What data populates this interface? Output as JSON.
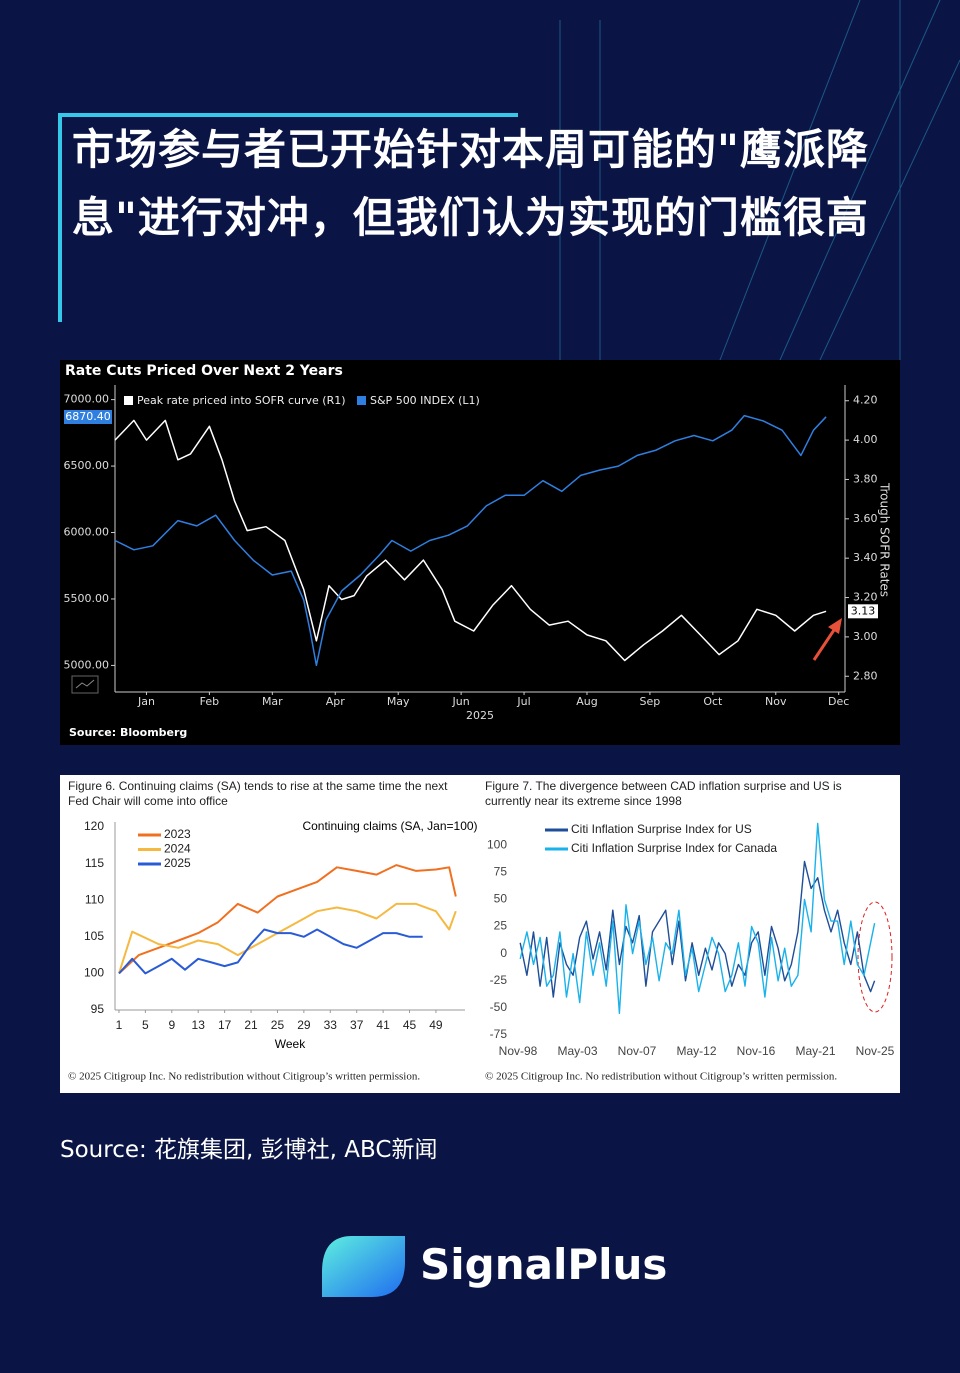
{
  "header": {
    "title": "市场参与者已开始针对本周可能的\"鹰派降息\"进行对冲，但我们认为实现的门槛很高"
  },
  "chart_data": [
    {
      "type": "line",
      "title": "Rate Cuts Priced Over Next 2 Years",
      "source": "Source: Bloomberg",
      "xlabel": "2025",
      "y2label": "Trough SOFR Rates",
      "xlim": [
        0,
        11.6
      ],
      "xticks": [
        {
          "value": 0.5,
          "label": "Jan"
        },
        {
          "value": 1.5,
          "label": "Feb"
        },
        {
          "value": 2.5,
          "label": "Mar"
        },
        {
          "value": 3.5,
          "label": "Apr"
        },
        {
          "value": 4.5,
          "label": "May"
        },
        {
          "value": 5.5,
          "label": "Jun"
        },
        {
          "value": 6.5,
          "label": "Jul"
        },
        {
          "value": 7.5,
          "label": "Aug"
        },
        {
          "value": 8.5,
          "label": "Sep"
        },
        {
          "value": 9.5,
          "label": "Oct"
        },
        {
          "value": 10.5,
          "label": "Nov"
        },
        {
          "value": 11.5,
          "label": "Dec"
        }
      ],
      "ylim": [
        4800,
        7110
      ],
      "yticks": [
        {
          "value": 5000,
          "label": "5000.00"
        },
        {
          "value": 5500,
          "label": "5500.00"
        },
        {
          "value": 6000,
          "label": "6000.00"
        },
        {
          "value": 6500,
          "label": "6500.00"
        },
        {
          "value": 7000,
          "label": "7000.00"
        }
      ],
      "y2lim": [
        2.72,
        4.28
      ],
      "y2ticks": [
        {
          "value": 2.8,
          "label": "2.80"
        },
        {
          "value": 3.0,
          "label": "3.00"
        },
        {
          "value": 3.2,
          "label": "3.20"
        },
        {
          "value": 3.4,
          "label": "3.40"
        },
        {
          "value": 3.6,
          "label": "3.60"
        },
        {
          "value": 3.8,
          "label": "3.80"
        },
        {
          "value": 4.0,
          "label": "4.00"
        },
        {
          "value": 4.2,
          "label": "4.20"
        }
      ],
      "series": [
        {
          "name": "Peak rate priced into SOFR curve (R1)",
          "color": "#ffffff",
          "axis": "y2",
          "last_label": "3.13",
          "x": [
            0,
            0.3,
            0.5,
            0.8,
            1.0,
            1.2,
            1.5,
            1.7,
            1.9,
            2.1,
            2.4,
            2.7,
            3.0,
            3.2,
            3.4,
            3.6,
            3.8,
            4.0,
            4.3,
            4.6,
            4.9,
            5.2,
            5.4,
            5.7,
            6.0,
            6.3,
            6.6,
            6.9,
            7.2,
            7.5,
            7.8,
            8.1,
            8.4,
            8.7,
            9.0,
            9.3,
            9.6,
            9.9,
            10.2,
            10.5,
            10.8,
            11.1,
            11.3
          ],
          "values": [
            4.0,
            4.1,
            4.0,
            4.1,
            3.9,
            3.93,
            4.07,
            3.9,
            3.69,
            3.54,
            3.56,
            3.49,
            3.24,
            2.98,
            3.26,
            3.19,
            3.21,
            3.31,
            3.39,
            3.29,
            3.39,
            3.24,
            3.08,
            3.03,
            3.16,
            3.26,
            3.14,
            3.06,
            3.08,
            3.01,
            2.98,
            2.88,
            2.96,
            3.03,
            3.11,
            3.01,
            2.91,
            2.98,
            3.14,
            3.11,
            3.03,
            3.11,
            3.13
          ]
        },
        {
          "name": "S&P 500 INDEX  (L1)",
          "color": "#2f7fe0",
          "last_label": "6870.40",
          "x": [
            0,
            0.3,
            0.6,
            1.0,
            1.3,
            1.6,
            1.9,
            2.2,
            2.5,
            2.8,
            3.0,
            3.1,
            3.2,
            3.35,
            3.6,
            3.9,
            4.2,
            4.4,
            4.7,
            5.0,
            5.3,
            5.6,
            5.9,
            6.2,
            6.5,
            6.8,
            7.1,
            7.4,
            7.7,
            8.0,
            8.3,
            8.6,
            8.9,
            9.2,
            9.5,
            9.8,
            10.0,
            10.3,
            10.6,
            10.9,
            11.1,
            11.3
          ],
          "values": [
            5940,
            5870,
            5900,
            6090,
            6050,
            6130,
            5940,
            5790,
            5680,
            5710,
            5490,
            5260,
            5000,
            5340,
            5560,
            5680,
            5830,
            5940,
            5860,
            5940,
            5980,
            6050,
            6200,
            6280,
            6280,
            6390,
            6310,
            6430,
            6470,
            6500,
            6580,
            6620,
            6690,
            6730,
            6690,
            6770,
            6880,
            6840,
            6770,
            6580,
            6770,
            6870.4
          ]
        }
      ]
    },
    {
      "type": "line",
      "title": "Figure 6. Continuing claims (SA) tends to rise at the same time the next Fed Chair will come into office",
      "subtitle": "Continuing claims (SA, Jan=100)",
      "xlabel": "Week",
      "footnote": "© 2025 Citigroup Inc. No redistribution without Citigroup’s written permission.",
      "xlim": [
        0.4,
        53.4
      ],
      "xticks": [
        1,
        5,
        9,
        13,
        17,
        21,
        25,
        29,
        33,
        37,
        41,
        45,
        49
      ],
      "ylim": [
        95,
        120
      ],
      "yticks": [
        95,
        100,
        105,
        110,
        115,
        120
      ],
      "series": [
        {
          "name": "2023",
          "color": "#f07020",
          "x": [
            1,
            4,
            7,
            10,
            13,
            16,
            19,
            22,
            25,
            28,
            31,
            34,
            37,
            40,
            43,
            46,
            49,
            51,
            52
          ],
          "values": [
            100,
            102.5,
            103.5,
            104.5,
            105.5,
            107,
            109.5,
            108.3,
            110.5,
            111.5,
            112.5,
            114.5,
            114,
            113.5,
            114.8,
            114,
            114.2,
            114.5,
            110.5
          ]
        },
        {
          "name": "2024",
          "color": "#f5b942",
          "x": [
            1,
            3,
            7,
            10,
            13,
            16,
            19,
            22,
            25,
            28,
            31,
            34,
            37,
            40,
            43,
            46,
            49,
            51,
            52
          ],
          "values": [
            100,
            105.7,
            104,
            103.5,
            104.5,
            104,
            102.5,
            104,
            105.5,
            107,
            108.5,
            109,
            108.5,
            107.5,
            109.5,
            109.5,
            108.5,
            106,
            108.5
          ]
        },
        {
          "name": "2025",
          "color": "#2a5bd7",
          "x": [
            1,
            3,
            5,
            7,
            9,
            11,
            13,
            15,
            17,
            19,
            21,
            23,
            25,
            27,
            29,
            31,
            33,
            35,
            37,
            39,
            41,
            43,
            45,
            47
          ],
          "values": [
            100,
            102,
            100,
            101,
            102,
            100.5,
            102,
            101.5,
            101,
            101.5,
            104,
            106,
            105.5,
            105.5,
            105,
            106,
            105,
            104,
            103.5,
            104.5,
            105.5,
            105.5,
            105,
            105
          ]
        }
      ]
    },
    {
      "type": "line",
      "title": "Figure 7. The divergence between CAD inflation surprise and US is currently near its extreme since 1998",
      "footnote": "© 2025 Citigroup Inc. No redistribution without Citigroup’s written permission.",
      "xlim": [
        1998.83,
        2025.83
      ],
      "xticks": [
        {
          "value": 1998.83,
          "label": "Nov-98"
        },
        {
          "value": 2003.33,
          "label": "May-03"
        },
        {
          "value": 2007.83,
          "label": "Nov-07"
        },
        {
          "value": 2012.33,
          "label": "May-12"
        },
        {
          "value": 2016.83,
          "label": "Nov-16"
        },
        {
          "value": 2021.33,
          "label": "May-21"
        },
        {
          "value": 2025.83,
          "label": "Nov-25"
        }
      ],
      "ylim": [
        -75,
        125
      ],
      "yticks": [
        -75,
        -50,
        -25,
        0,
        25,
        50,
        75,
        100
      ],
      "x": [
        1999.0,
        1999.5,
        2000.0,
        2000.5,
        2001.0,
        2001.5,
        2002.0,
        2002.5,
        2003.0,
        2003.5,
        2004.0,
        2004.5,
        2005.0,
        2005.5,
        2006.0,
        2006.5,
        2007.0,
        2007.5,
        2008.0,
        2008.5,
        2009.0,
        2009.5,
        2010.0,
        2010.5,
        2011.0,
        2011.5,
        2012.0,
        2012.5,
        2013.0,
        2013.5,
        2014.0,
        2014.5,
        2015.0,
        2015.5,
        2016.0,
        2016.5,
        2017.0,
        2017.5,
        2018.0,
        2018.5,
        2019.0,
        2019.5,
        2020.0,
        2020.5,
        2021.0,
        2021.5,
        2022.0,
        2022.5,
        2023.0,
        2023.5,
        2024.0,
        2024.5,
        2025.0,
        2025.5,
        2025.8
      ],
      "series": [
        {
          "name": "Citi Inflation Surprise Index for US",
          "color": "#1f4e99",
          "values": [
            10,
            -20,
            20,
            -30,
            15,
            -40,
            10,
            -10,
            -20,
            15,
            30,
            -5,
            20,
            -15,
            40,
            -10,
            25,
            10,
            35,
            -30,
            20,
            30,
            40,
            -10,
            30,
            -25,
            10,
            -20,
            5,
            -15,
            10,
            0,
            -30,
            -10,
            -20,
            10,
            20,
            -20,
            25,
            5,
            -25,
            -10,
            20,
            85,
            60,
            70,
            40,
            20,
            40,
            10,
            -10,
            20,
            -20,
            -35,
            -25
          ]
        },
        {
          "name": "Citi Inflation Surprise Index for Canada",
          "color": "#1ab2ea",
          "values": [
            -5,
            20,
            -10,
            15,
            -30,
            -20,
            20,
            -40,
            0,
            -45,
            20,
            -20,
            10,
            -30,
            30,
            -55,
            45,
            0,
            30,
            -10,
            15,
            -25,
            10,
            0,
            40,
            -20,
            5,
            -35,
            -10,
            15,
            0,
            -35,
            -20,
            10,
            -30,
            25,
            10,
            -40,
            15,
            -25,
            5,
            -30,
            -20,
            50,
            20,
            120,
            50,
            30,
            30,
            -10,
            30,
            -10,
            -20,
            10,
            28
          ]
        }
      ]
    }
  ],
  "footer": {
    "source": "Source: 花旗集团, 彭博社, ABC新闻",
    "brand": "SignalPlus"
  }
}
